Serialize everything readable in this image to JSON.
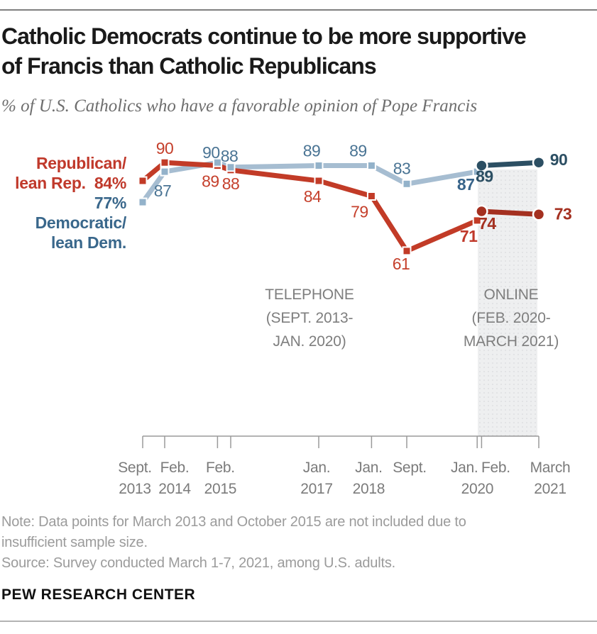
{
  "header": {
    "title_line1": "Catholic Democrats continue to be more supportive",
    "title_line2": "of Francis than Catholic Republicans",
    "subtitle": "% of U.S. Catholics who have a favorable opinion of Pope Francis"
  },
  "legend": {
    "rep_line1": "Republican/",
    "rep_line2": "lean Rep.",
    "rep_value": "84%",
    "dem_value": "77%",
    "dem_line1": "Democratic/",
    "dem_line2": "lean Dem."
  },
  "chart_data": {
    "type": "line",
    "title": "Catholic Democrats continue to be more supportive of Francis than Catholic Republicans",
    "subtitle": "% of U.S. Catholics who have a favorable opinion of Pope Francis",
    "x_axis": "Survey date (Sept. 2013 - March 2021), linear time scale, months since Sept. 2013",
    "grid": false,
    "colors": {
      "phone_rep_line": "#c23b27",
      "phone_rep_label": "#c5402c",
      "phone_rep_bold_label": "#c0392b",
      "phone_dem_line": "#a6bdd1",
      "phone_dem_marker": "#93b2ca",
      "phone_dem_label": "#4a7494",
      "phone_dem_bold_label": "#38648a",
      "online_rep": "#a43020",
      "online_dem": "#2c4f63",
      "axis": "#9a9a9a",
      "online_band": "#eeeff0"
    },
    "series": [
      {
        "id": "dem_phone",
        "name": "Democratic/lean Dem. (telephone)",
        "mode": "telephone",
        "color": "#a6bdd1",
        "marker_color": "#93b2ca",
        "label_color": "#4a7494",
        "bold_label_color": "#38648a",
        "points": [
          {
            "m": 0,
            "v": 77,
            "x_label": "Sept. 2013"
          },
          {
            "m": 5,
            "v": 87,
            "x_label": "Feb. 2014"
          },
          {
            "m": 17,
            "v": 90,
            "x_label": "Feb. 2015"
          },
          {
            "m": 20,
            "v": 88,
            "x_label": ""
          },
          {
            "m": 40,
            "v": 89,
            "x_label": "Jan. 2017"
          },
          {
            "m": 52,
            "v": 89,
            "x_label": "Jan. 2018"
          },
          {
            "m": 60,
            "v": 83,
            "x_label": "Sept."
          },
          {
            "m": 76,
            "v": 87,
            "x_label": "Jan. 2020"
          }
        ]
      },
      {
        "id": "rep_phone",
        "name": "Republican/lean Rep. (telephone)",
        "mode": "telephone",
        "color": "#c23b27",
        "marker_color": "#c23b27",
        "label_color": "#c5402c",
        "bold_label_color": "#c0392b",
        "points": [
          {
            "m": 0,
            "v": 84,
            "x_label": "Sept. 2013"
          },
          {
            "m": 5,
            "v": 90,
            "x_label": "Feb. 2014"
          },
          {
            "m": 17,
            "v": 89,
            "x_label": "Feb. 2015"
          },
          {
            "m": 20,
            "v": 88,
            "x_label": ""
          },
          {
            "m": 40,
            "v": 84,
            "x_label": "Jan. 2017"
          },
          {
            "m": 52,
            "v": 79,
            "x_label": "Jan. 2018"
          },
          {
            "m": 60,
            "v": 61,
            "x_label": "Sept."
          },
          {
            "m": 76,
            "v": 71,
            "x_label": "Jan. 2020"
          }
        ]
      },
      {
        "id": "dem_online",
        "name": "Democratic/lean Dem. (online)",
        "mode": "online",
        "color": "#2c4f63",
        "marker_color": "#2c4f63",
        "label_color": "#2c4f63",
        "points": [
          {
            "m": 77,
            "v": 89,
            "x_label": "Feb. 2020"
          },
          {
            "m": 90,
            "v": 90,
            "x_label": "March 2021"
          }
        ]
      },
      {
        "id": "rep_online",
        "name": "Republican/lean Rep. (online)",
        "mode": "online",
        "color": "#a43020",
        "marker_color": "#a43020",
        "label_color": "#a43020",
        "points": [
          {
            "m": 77,
            "v": 74,
            "x_label": "Feb. 2020"
          },
          {
            "m": 90,
            "v": 73,
            "x_label": "March 2021"
          }
        ]
      }
    ],
    "x_ticks": [
      {
        "m": 0,
        "lines": [
          "Sept.",
          "2013"
        ]
      },
      {
        "m": 5,
        "lines": [
          "Feb.",
          "2014"
        ]
      },
      {
        "m": 17,
        "lines": [
          "Feb.",
          "2015"
        ]
      },
      {
        "m": 20,
        "lines": []
      },
      {
        "m": 40,
        "lines": [
          "Jan.",
          "2017"
        ]
      },
      {
        "m": 52,
        "lines": [
          "Jan.",
          "2018"
        ]
      },
      {
        "m": 60,
        "lines": [
          "Sept."
        ]
      },
      {
        "m": 76,
        "lines": [
          "Jan."
        ]
      },
      {
        "m": 77,
        "lines": [
          "Feb.",
          "2020"
        ]
      },
      {
        "m": 90,
        "lines": [
          "March",
          "2021"
        ]
      }
    ],
    "annotations": {
      "telephone_lines": [
        "TELEPHONE",
        "(SEPT. 2013-",
        "JAN. 2020)"
      ],
      "online_lines": [
        "ONLINE",
        "(FEB. 2020-",
        "MARCH 2021)"
      ]
    }
  },
  "footer": {
    "note_line1": "Note: Data points for March 2013 and October 2015 are not included due to",
    "note_line2": "insufficient sample size.",
    "source": "Source: Survey conducted March 1-7, 2021, among U.S. adults.",
    "brand": "PEW RESEARCH CENTER"
  }
}
